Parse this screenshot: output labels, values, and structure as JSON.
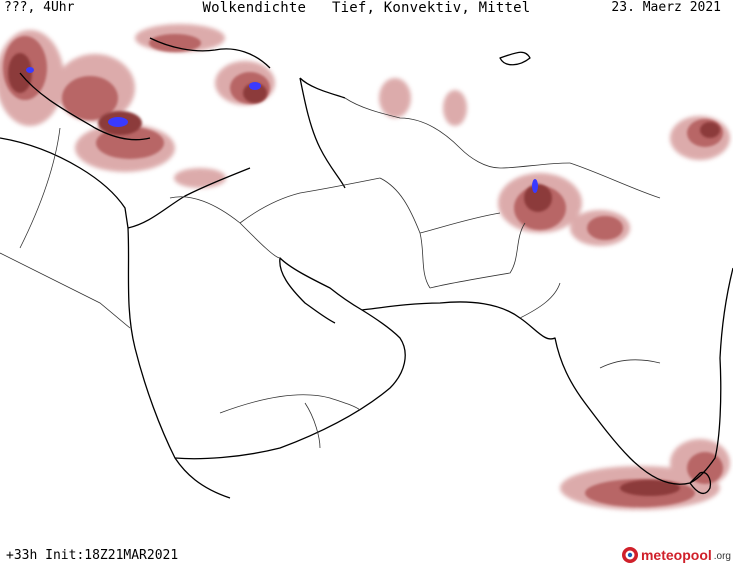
{
  "header": {
    "time_label": "???, 4Uhr",
    "title": "Wolkendichte   Tief, Konvektiv, Mittel",
    "date": "23. Maerz 2021"
  },
  "footer": {
    "forecast": "+33h Init:18Z21MAR2021",
    "brand": "meteopool",
    "brand_tld": ".org"
  },
  "colors": {
    "cloud_light": "#d9a3a3",
    "cloud_medium": "#b86666",
    "cloud_dark": "#8c3a3a",
    "cloud_peak": "#3a3aff",
    "coastline": "#000000",
    "border": "#333333",
    "brand": "#d0202a"
  },
  "icons": {
    "logo": "meteopool-logo-icon"
  }
}
